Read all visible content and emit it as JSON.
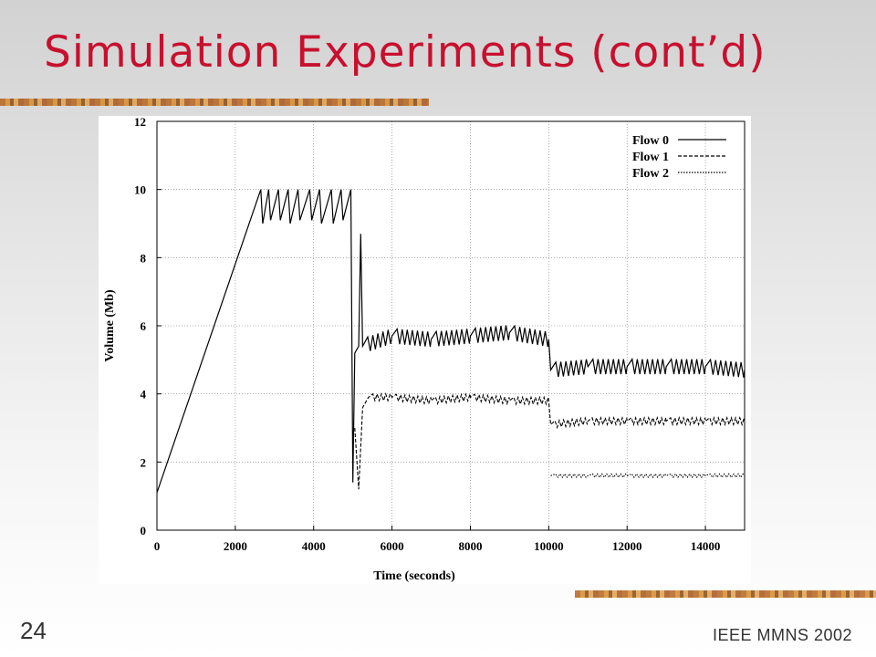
{
  "slide": {
    "title": "Simulation Experiments (cont’d)",
    "number": "24",
    "footer": "IEEE MMNS 2002"
  },
  "colors": {
    "title": "#c8102e",
    "accent_bar": "#c27a2c",
    "lines": "#000000"
  },
  "chart_data": {
    "type": "line",
    "title": "",
    "xlabel": "Time (seconds)",
    "ylabel": "Volume (Mb)",
    "xlim": [
      0,
      15000
    ],
    "ylim": [
      0,
      12
    ],
    "xticks": [
      0,
      2000,
      4000,
      6000,
      8000,
      10000,
      12000,
      14000
    ],
    "yticks": [
      0,
      2,
      4,
      6,
      8,
      10,
      12
    ],
    "grid": true,
    "legend_position": "top-right",
    "series": [
      {
        "name": "Flow 0",
        "style": "solid",
        "description_points": [
          [
            0,
            1.1
          ],
          [
            2650,
            10.0
          ],
          [
            2700,
            9.0
          ],
          [
            2850,
            10.0
          ],
          [
            2900,
            9.1
          ],
          [
            3100,
            10.0
          ],
          [
            3150,
            9.1
          ],
          [
            3350,
            10.0
          ],
          [
            3400,
            9.0
          ],
          [
            3600,
            10.0
          ],
          [
            3650,
            9.1
          ],
          [
            3900,
            10.0
          ],
          [
            3950,
            9.1
          ],
          [
            4150,
            10.0
          ],
          [
            4200,
            9.0
          ],
          [
            4450,
            10.0
          ],
          [
            4500,
            9.0
          ],
          [
            4700,
            10.0
          ],
          [
            4750,
            9.1
          ],
          [
            4950,
            10.0
          ],
          [
            5000,
            1.4
          ],
          [
            5050,
            5.2
          ],
          [
            5150,
            5.4
          ],
          [
            5200,
            8.7
          ],
          [
            5250,
            5.4
          ],
          [
            6000,
            5.7
          ],
          [
            7000,
            5.6
          ],
          [
            8000,
            5.7
          ],
          [
            9000,
            5.8
          ],
          [
            10000,
            5.6
          ],
          [
            10050,
            4.7
          ],
          [
            11000,
            4.8
          ],
          [
            12000,
            4.8
          ],
          [
            13000,
            4.8
          ],
          [
            14000,
            4.8
          ],
          [
            15000,
            4.7
          ]
        ]
      },
      {
        "name": "Flow 1",
        "style": "dashed",
        "description_points": [
          [
            5050,
            3.0
          ],
          [
            5150,
            1.2
          ],
          [
            5250,
            3.6
          ],
          [
            5400,
            3.9
          ],
          [
            6000,
            3.9
          ],
          [
            7000,
            3.8
          ],
          [
            8000,
            3.9
          ],
          [
            9000,
            3.8
          ],
          [
            10000,
            3.8
          ],
          [
            10050,
            3.1
          ],
          [
            11000,
            3.2
          ],
          [
            12000,
            3.2
          ],
          [
            13000,
            3.2
          ],
          [
            14000,
            3.2
          ],
          [
            15000,
            3.2
          ]
        ]
      },
      {
        "name": "Flow 2",
        "style": "dotted",
        "description_points": [
          [
            10050,
            1.6
          ],
          [
            11000,
            1.6
          ],
          [
            12000,
            1.6
          ],
          [
            13000,
            1.6
          ],
          [
            14000,
            1.6
          ],
          [
            15000,
            1.6
          ]
        ]
      }
    ]
  }
}
